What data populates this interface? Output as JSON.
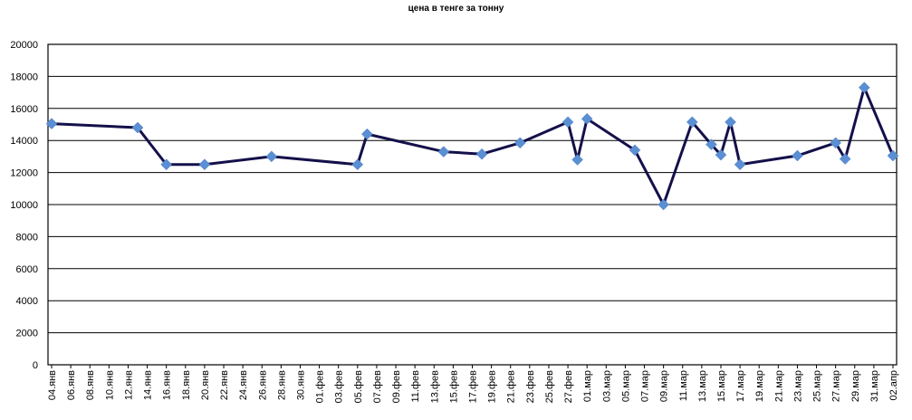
{
  "chart_data": {
    "type": "line",
    "title": "цена в тенге за тонну",
    "xlabel": "",
    "ylabel": "",
    "ylim": [
      0,
      20000
    ],
    "yticks": [
      0,
      2000,
      4000,
      6000,
      8000,
      10000,
      12000,
      14000,
      16000,
      18000,
      20000
    ],
    "grid": "horizontal",
    "categories": [
      "04.янв",
      "06.янв",
      "08.янв",
      "10.янв",
      "12.янв",
      "14.янв",
      "16.янв",
      "18.янв",
      "20.янв",
      "22.янв",
      "24.янв",
      "26.янв",
      "28.янв",
      "30.янв",
      "01.фев",
      "03.фев",
      "05.фев",
      "07.фев",
      "09.фев",
      "11.фев",
      "13.фев",
      "15.фев",
      "17.фев",
      "19.фев",
      "21.фев",
      "23.фев",
      "25.фев",
      "27.фев",
      "01.мар",
      "03.мар",
      "05.мар",
      "07.мар",
      "09.мар",
      "11.мар",
      "13.мар",
      "15.мар",
      "17.мар",
      "19.мар",
      "21.мар",
      "23.мар",
      "25.мар",
      "27.мар",
      "29.мар",
      "31.мар",
      "02.апр"
    ],
    "series": [
      {
        "color": "#14104a",
        "marker_color": "#5b8fd4",
        "points": [
          {
            "x": "04.янв",
            "y": 15050
          },
          {
            "x": "13.янв",
            "y": 14800
          },
          {
            "x": "16.янв",
            "y": 12500
          },
          {
            "x": "20.янв",
            "y": 12500
          },
          {
            "x": "27.янв",
            "y": 13000
          },
          {
            "x": "05.фев",
            "y": 12500
          },
          {
            "x": "06.фев",
            "y": 14400
          },
          {
            "x": "14.фев",
            "y": 13300
          },
          {
            "x": "18.фев",
            "y": 13150
          },
          {
            "x": "22.фев",
            "y": 13850
          },
          {
            "x": "27.фев",
            "y": 15150
          },
          {
            "x": "28.фев",
            "y": 12800
          },
          {
            "x": "01.мар",
            "y": 15350
          },
          {
            "x": "06.мар",
            "y": 13400
          },
          {
            "x": "09.мар",
            "y": 10000
          },
          {
            "x": "12.мар",
            "y": 15150
          },
          {
            "x": "14.мар",
            "y": 13750
          },
          {
            "x": "15.мар",
            "y": 13100
          },
          {
            "x": "16.мар",
            "y": 15150
          },
          {
            "x": "17.мар",
            "y": 12500
          },
          {
            "x": "23.мар",
            "y": 13050
          },
          {
            "x": "27.мар",
            "y": 13850
          },
          {
            "x": "28.мар",
            "y": 12850
          },
          {
            "x": "30.мар",
            "y": 17300
          },
          {
            "x": "02.апр",
            "y": 13050
          }
        ]
      }
    ]
  }
}
